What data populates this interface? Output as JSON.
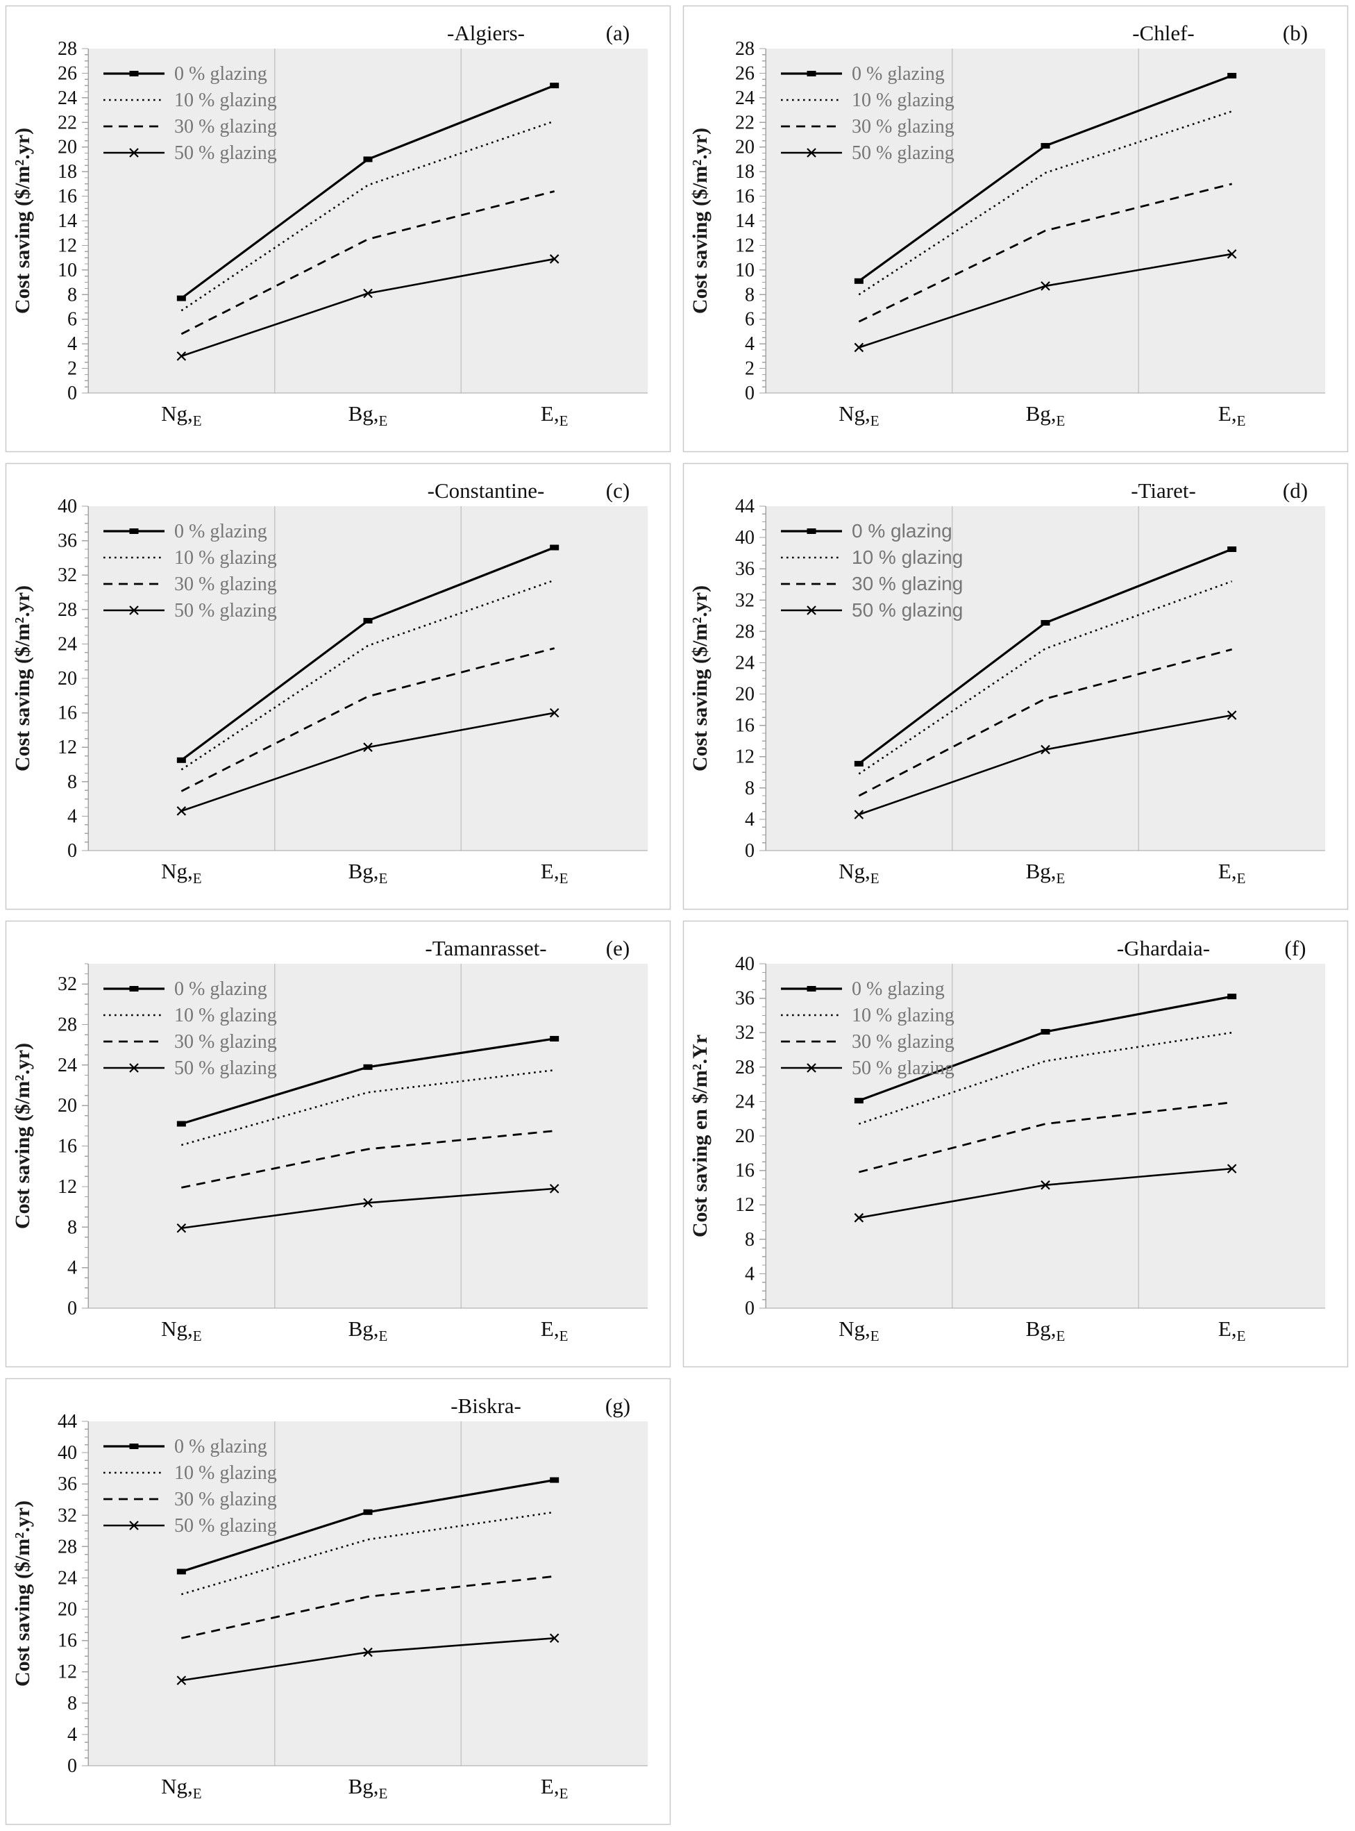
{
  "page": {
    "background": "#ffffff"
  },
  "colors": {
    "line": "#000000",
    "legend_text": "#767676",
    "plot_bg": "#ededed",
    "gridline": "#c6c6c6",
    "axis": "#a3a3a3",
    "tick_label": "#111111",
    "title": "#111111",
    "panel_border": "#c9c9c9"
  },
  "legend_labels": [
    "0 % glazing",
    "10 % glazing",
    "30 % glazing",
    "50 % glazing"
  ],
  "series_styles": [
    "solid-square",
    "dotted",
    "dashed",
    "solid-x"
  ],
  "categories": [
    {
      "main": "Ng,",
      "sub": "E"
    },
    {
      "main": "Bg,",
      "sub": "E"
    },
    {
      "main": "E,",
      "sub": "E"
    }
  ],
  "chart_data": [
    {
      "type": "line",
      "panel": "(a)",
      "title": "-Algiers-",
      "ylabel": "Cost saving ($/m².yr)",
      "ylim": [
        0,
        28
      ],
      "ytick": 2,
      "grid": "vertical",
      "legend_position": "top-left",
      "legend_font": "serif",
      "series": [
        {
          "name": "0 % glazing",
          "style": "solid-square",
          "values": [
            7.7,
            19.0,
            25.0
          ]
        },
        {
          "name": "10 % glazing",
          "style": "dotted",
          "values": [
            6.7,
            16.9,
            22.1
          ]
        },
        {
          "name": "30 % glazing",
          "style": "dashed",
          "values": [
            4.8,
            12.5,
            16.4
          ]
        },
        {
          "name": "50 % glazing",
          "style": "solid-x",
          "values": [
            3.0,
            8.1,
            10.9
          ]
        }
      ]
    },
    {
      "type": "line",
      "panel": "(b)",
      "title": "-Chlef-",
      "ylabel": "Cost saving ($/m².yr)",
      "ylim": [
        0,
        28
      ],
      "ytick": 2,
      "grid": "vertical",
      "legend_position": "top-left",
      "legend_font": "serif",
      "series": [
        {
          "name": "0 % glazing",
          "style": "solid-square",
          "values": [
            9.1,
            20.1,
            25.8
          ]
        },
        {
          "name": "10 % glazing",
          "style": "dotted",
          "values": [
            8.0,
            17.9,
            22.9
          ]
        },
        {
          "name": "30 % glazing",
          "style": "dashed",
          "values": [
            5.8,
            13.2,
            17.0
          ]
        },
        {
          "name": "50 % glazing",
          "style": "solid-x",
          "values": [
            3.7,
            8.7,
            11.3
          ]
        }
      ]
    },
    {
      "type": "line",
      "panel": "(c)",
      "title": "-Constantine-",
      "ylabel": "Cost saving ($/m².yr)",
      "ylim": [
        0,
        40
      ],
      "ytick": 4,
      "grid": "vertical",
      "legend_position": "top-left",
      "legend_font": "serif",
      "series": [
        {
          "name": "0 % glazing",
          "style": "solid-square",
          "values": [
            10.5,
            26.7,
            35.2
          ]
        },
        {
          "name": "10 % glazing",
          "style": "dotted",
          "values": [
            9.4,
            23.8,
            31.4
          ]
        },
        {
          "name": "30 % glazing",
          "style": "dashed",
          "values": [
            6.9,
            17.9,
            23.5
          ]
        },
        {
          "name": "50 % glazing",
          "style": "solid-x",
          "values": [
            4.6,
            12.0,
            16.0
          ]
        }
      ]
    },
    {
      "type": "line",
      "panel": "(d)",
      "title": "-Tiaret-",
      "ylabel": "Cost saving ($/m².yr)",
      "ylim": [
        0,
        44
      ],
      "ytick": 4,
      "grid": "vertical",
      "legend_position": "top-left",
      "legend_font": "sans",
      "series": [
        {
          "name": "0 % glazing",
          "style": "solid-square",
          "values": [
            11.1,
            29.1,
            38.5
          ]
        },
        {
          "name": "10 % glazing",
          "style": "dotted",
          "values": [
            9.8,
            25.8,
            34.4
          ]
        },
        {
          "name": "30 % glazing",
          "style": "dashed",
          "values": [
            7.0,
            19.4,
            25.7
          ]
        },
        {
          "name": "50 % glazing",
          "style": "solid-x",
          "values": [
            4.6,
            12.9,
            17.3
          ]
        }
      ]
    },
    {
      "type": "line",
      "panel": "(e)",
      "title": "-Tamanrasset-",
      "ylabel": "Cost saving ($/m².yr)",
      "ylim": [
        0,
        34
      ],
      "ytick": 4,
      "grid": "vertical",
      "legend_position": "top-left",
      "legend_font": "serif",
      "series": [
        {
          "name": "0 % glazing",
          "style": "solid-square",
          "values": [
            18.2,
            23.8,
            26.6
          ]
        },
        {
          "name": "10 % glazing",
          "style": "dotted",
          "values": [
            16.1,
            21.3,
            23.5
          ]
        },
        {
          "name": "30 % glazing",
          "style": "dashed",
          "values": [
            11.9,
            15.7,
            17.5
          ]
        },
        {
          "name": "50 % glazing",
          "style": "solid-x",
          "values": [
            7.9,
            10.4,
            11.8
          ]
        }
      ]
    },
    {
      "type": "line",
      "panel": "(f)",
      "title": "-Ghardaia-",
      "ylabel": "Cost saving en $/m².Yr",
      "ylim": [
        0,
        40
      ],
      "ytick": 4,
      "grid": "vertical",
      "legend_position": "top-left",
      "legend_font": "serif",
      "series": [
        {
          "name": "0 % glazing",
          "style": "solid-square",
          "values": [
            24.1,
            32.1,
            36.2
          ]
        },
        {
          "name": "10 % glazing",
          "style": "dotted",
          "values": [
            21.4,
            28.7,
            32.0
          ]
        },
        {
          "name": "30 % glazing",
          "style": "dashed",
          "values": [
            15.8,
            21.4,
            23.9
          ]
        },
        {
          "name": "50 % glazing",
          "style": "solid-x",
          "values": [
            10.5,
            14.3,
            16.2
          ]
        }
      ]
    },
    {
      "type": "line",
      "panel": "(g)",
      "title": "-Biskra-",
      "ylabel": "Cost saving ($/m².yr)",
      "ylim": [
        0,
        44
      ],
      "ytick": 4,
      "grid": "vertical",
      "legend_position": "top-left",
      "legend_font": "serif",
      "series": [
        {
          "name": "0 % glazing",
          "style": "solid-square",
          "values": [
            24.8,
            32.4,
            36.5
          ]
        },
        {
          "name": "10 % glazing",
          "style": "dotted",
          "values": [
            21.9,
            28.9,
            32.4
          ]
        },
        {
          "name": "30 % glazing",
          "style": "dashed",
          "values": [
            16.3,
            21.6,
            24.2
          ]
        },
        {
          "name": "50 % glazing",
          "style": "solid-x",
          "values": [
            10.9,
            14.5,
            16.3
          ]
        }
      ]
    }
  ]
}
